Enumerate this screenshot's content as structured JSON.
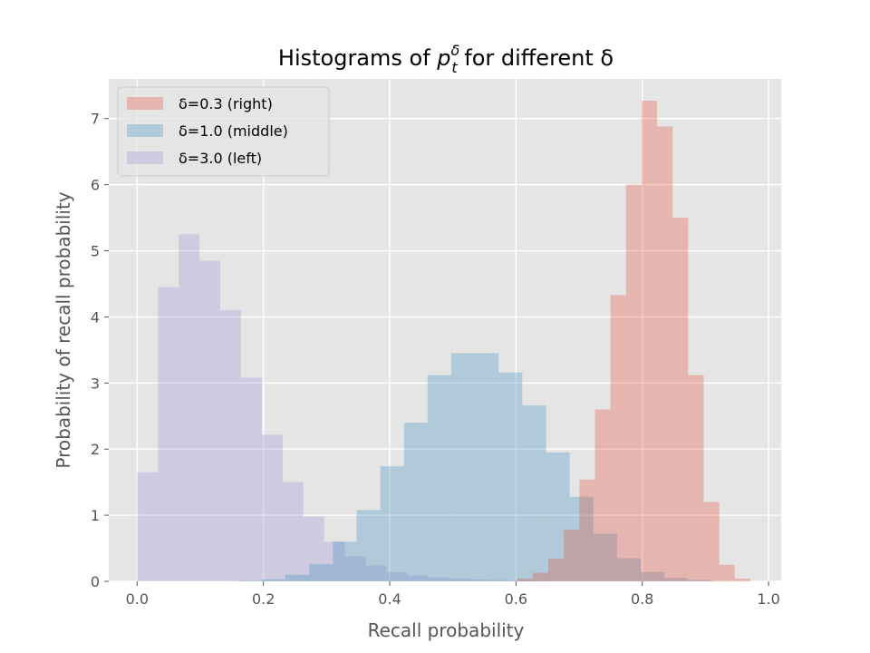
{
  "chart_data": {
    "type": "bar",
    "title": "Histograms of p_t^δ for different δ",
    "title_parts": {
      "prefix": "Histograms of ",
      "var": "p",
      "subscript": "t",
      "superscript": "δ",
      "suffix": " for different δ"
    },
    "xlabel": "Recall probability",
    "ylabel": "Probability of recall probability",
    "xlim": [
      -0.045,
      1.02
    ],
    "ylim": [
      0,
      7.6
    ],
    "xticks": [
      0.0,
      0.2,
      0.4,
      0.6,
      0.8,
      1.0
    ],
    "xtick_labels": [
      "0.0",
      "0.2",
      "0.4",
      "0.6",
      "0.8",
      "1.0"
    ],
    "yticks": [
      0,
      1,
      2,
      3,
      4,
      5,
      6,
      7
    ],
    "ytick_labels": [
      "0",
      "1",
      "2",
      "3",
      "4",
      "5",
      "6",
      "7"
    ],
    "grid": true,
    "legend_position": "top-left",
    "series": [
      {
        "name": "δ=3.0 (left)",
        "color": "#988ED5",
        "opacity": 0.3,
        "bin_start": 0.0,
        "bin_width": 0.0329,
        "values": [
          1.65,
          4.45,
          5.25,
          4.85,
          4.1,
          3.08,
          2.22,
          1.5,
          0.98,
          0.6,
          0.38,
          0.24,
          0.14,
          0.09,
          0.06,
          0.04,
          0.03,
          0.02,
          0.01,
          0.005
        ]
      },
      {
        "name": "δ=1.0 (middle)",
        "color": "#348ABD",
        "opacity": 0.3,
        "bin_start": 0.16,
        "bin_width": 0.0375,
        "values": [
          0.01,
          0.03,
          0.1,
          0.26,
          0.6,
          1.08,
          1.74,
          2.4,
          3.12,
          3.45,
          3.45,
          3.16,
          2.66,
          1.95,
          1.28,
          0.72,
          0.35,
          0.14,
          0.05,
          0.02
        ]
      },
      {
        "name": "δ=0.3 (right)",
        "color": "#E24A33",
        "opacity": 0.3,
        "bin_start": 0.602,
        "bin_width": 0.0246,
        "values": [
          0.04,
          0.13,
          0.34,
          0.78,
          1.54,
          2.6,
          4.33,
          6.0,
          7.27,
          6.88,
          5.5,
          3.12,
          1.2,
          0.25,
          0.04
        ]
      }
    ],
    "legend_order": [
      2,
      1,
      0
    ]
  }
}
